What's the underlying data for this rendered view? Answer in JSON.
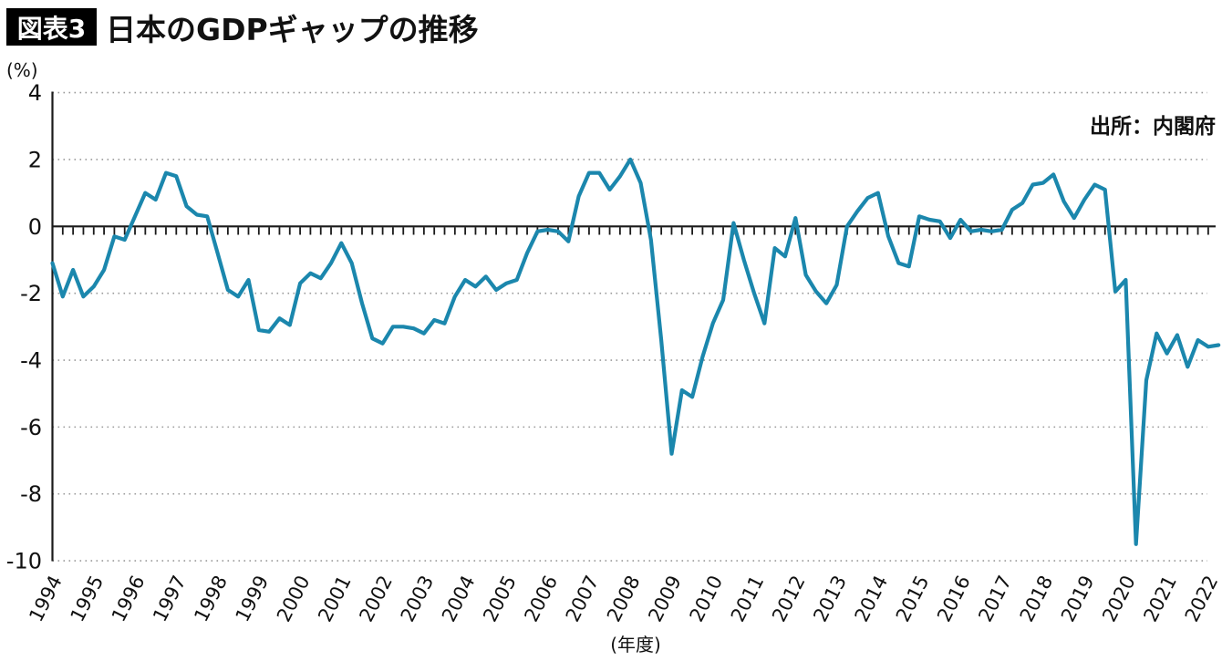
{
  "header": {
    "badge": "図表3",
    "title": "日本のGDPギャップの推移"
  },
  "chart_data": {
    "type": "line",
    "title": "日本のGDPギャップの推移",
    "source": "出所：内閣府",
    "ylabel": "(%)",
    "xlabel": "(年度)",
    "ylim": [
      -10,
      4
    ],
    "y_ticks": [
      4,
      2,
      0,
      -2,
      -4,
      -6,
      -8,
      -10
    ],
    "x_years": [
      1994,
      1995,
      1996,
      1997,
      1998,
      1999,
      2000,
      2001,
      2002,
      2003,
      2004,
      2005,
      2006,
      2007,
      2008,
      2009,
      2010,
      2011,
      2012,
      2013,
      2014,
      2015,
      2016,
      2017,
      2018,
      2019,
      2020,
      2021,
      2022
    ],
    "frequency": "quarterly",
    "grid": "horizontal-dotted",
    "legend_position": "none",
    "line_color": "#1b87ad",
    "axis_color": "#1a1a1a",
    "grid_color": "#999999",
    "series": [
      {
        "name": "GDPギャップ",
        "unit": "%",
        "start": "1994Q1",
        "end": "2022Q2",
        "values": [
          -1.1,
          -2.1,
          -1.3,
          -2.1,
          -1.8,
          -1.3,
          -0.3,
          -0.4,
          0.3,
          1.0,
          0.8,
          1.6,
          1.5,
          0.6,
          0.35,
          0.3,
          -0.8,
          -1.9,
          -2.1,
          -1.6,
          -3.1,
          -3.15,
          -2.75,
          -2.95,
          -1.7,
          -1.4,
          -1.55,
          -1.1,
          -0.5,
          -1.1,
          -2.3,
          -3.35,
          -3.5,
          -3.0,
          -3.0,
          -3.05,
          -3.2,
          -2.8,
          -2.9,
          -2.1,
          -1.6,
          -1.8,
          -1.5,
          -1.9,
          -1.7,
          -1.6,
          -0.8,
          -0.15,
          -0.1,
          -0.15,
          -0.45,
          0.9,
          1.6,
          1.6,
          1.1,
          1.5,
          2.0,
          1.3,
          -0.4,
          -3.4,
          -6.8,
          -4.9,
          -5.1,
          -3.9,
          -2.9,
          -2.2,
          0.1,
          -1.0,
          -2.0,
          -2.9,
          -0.65,
          -0.9,
          0.25,
          -1.45,
          -1.95,
          -2.3,
          -1.75,
          0.0,
          0.45,
          0.85,
          1.0,
          -0.3,
          -1.1,
          -1.2,
          0.3,
          0.2,
          0.15,
          -0.35,
          0.2,
          -0.15,
          -0.1,
          -0.15,
          -0.1,
          0.5,
          0.7,
          1.25,
          1.3,
          1.55,
          0.75,
          0.25,
          0.8,
          1.25,
          1.1,
          -1.95,
          -1.6,
          -9.5,
          -4.6,
          -3.2,
          -3.8,
          -3.25,
          -4.2,
          -3.4,
          -3.6,
          -3.55
        ]
      }
    ]
  }
}
